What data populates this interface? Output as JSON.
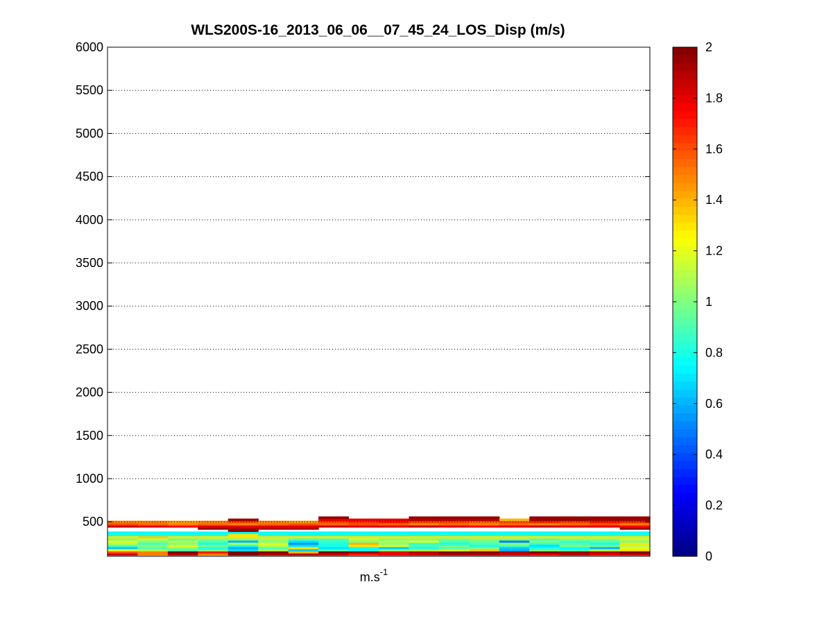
{
  "chart_data": {
    "type": "heatmap",
    "title": "WLS200S-16_2013_06_06__07_45_24_LOS_Disp (m/s)",
    "xlabel": "m.s",
    "xlabel_superscript": "-1",
    "ylabel": "",
    "ylim": [
      100,
      6000
    ],
    "yticks": [
      "500",
      "1000",
      "1500",
      "2000",
      "2500",
      "3000",
      "3500",
      "4000",
      "4500",
      "5000",
      "5500",
      "6000"
    ],
    "ytick_values": [
      500,
      1000,
      1500,
      2000,
      2500,
      3000,
      3500,
      4000,
      4500,
      5000,
      5500,
      6000
    ],
    "grid": true,
    "colormap": "jet",
    "clim": [
      0,
      2
    ],
    "colorbar_ticks": [
      "0",
      "0.2",
      "0.4",
      "0.6",
      "0.8",
      "1",
      "1.2",
      "1.4",
      "1.6",
      "1.8",
      "2"
    ],
    "colorbar_tick_values": [
      0,
      0.2,
      0.4,
      0.6,
      0.8,
      1.0,
      1.2,
      1.4,
      1.6,
      1.8,
      2.0
    ],
    "altitudes": [
      125,
      150,
      175,
      200,
      225,
      250,
      275,
      300,
      325,
      350,
      375,
      400,
      425,
      450,
      475,
      500,
      525,
      550,
      575
    ],
    "columns": 18,
    "values": [
      [
        1.85,
        1.5,
        1.9,
        1.5,
        2.0,
        1.9,
        1.9,
        1.85,
        1.7,
        1.8,
        1.85,
        1.9,
        1.9,
        1.85,
        1.8,
        1.9,
        1.8,
        1.85
      ],
      [
        1.6,
        1.5,
        2.0,
        1.7,
        2.0,
        2.0,
        1.4,
        2.0,
        1.95,
        1.8,
        1.9,
        2.0,
        2.0,
        1.9,
        2.0,
        1.95,
        1.9,
        2.0
      ],
      [
        1.2,
        1.1,
        0.9,
        1.0,
        0.7,
        1.1,
        0.65,
        0.9,
        0.8,
        1.0,
        1.1,
        1.2,
        1.35,
        0.6,
        1.0,
        0.9,
        1.1,
        1.3
      ],
      [
        0.65,
        0.9,
        1.0,
        0.8,
        0.6,
        0.9,
        1.3,
        0.7,
        0.75,
        0.65,
        0.8,
        0.9,
        1.0,
        0.65,
        0.8,
        0.75,
        0.6,
        1.2
      ],
      [
        0.9,
        1.0,
        1.2,
        1.0,
        0.8,
        1.1,
        0.7,
        0.8,
        1.3,
        1.2,
        0.9,
        1.0,
        0.8,
        0.9,
        0.7,
        1.0,
        1.0,
        1.1
      ],
      [
        1.1,
        0.9,
        1.0,
        0.8,
        1.1,
        1.2,
        0.55,
        0.8,
        1.4,
        1.0,
        0.85,
        0.8,
        0.9,
        1.0,
        0.85,
        0.9,
        0.8,
        1.3
      ],
      [
        1.2,
        1.0,
        1.1,
        0.9,
        0.6,
        1.0,
        0.7,
        0.85,
        1.0,
        1.1,
        1.2,
        0.9,
        0.95,
        0.5,
        1.0,
        0.85,
        0.9,
        1.0
      ],
      [
        1.0,
        1.1,
        0.95,
        1.0,
        1.0,
        1.05,
        0.9,
        0.9,
        1.1,
        1.0,
        1.0,
        0.95,
        1.0,
        1.0,
        0.9,
        1.0,
        1.0,
        1.1
      ],
      [
        1.3,
        1.35,
        1.3,
        1.3,
        1.3,
        1.3,
        1.3,
        1.3,
        1.3,
        1.3,
        1.3,
        1.3,
        1.3,
        1.3,
        1.3,
        1.3,
        1.3,
        1.3
      ],
      [
        0.8,
        0.8,
        0.8,
        0.8,
        1.3,
        0.8,
        0.8,
        0.8,
        0.8,
        0.8,
        0.8,
        0.8,
        0.8,
        0.8,
        0.8,
        0.8,
        0.8,
        0.8
      ],
      [
        0.75,
        0.75,
        0.75,
        0.75,
        0.75,
        0.75,
        0.75,
        0.75,
        0.75,
        0.75,
        0.75,
        0.75,
        0.75,
        0.75,
        0.75,
        0.75,
        0.75,
        0.75
      ],
      [
        null,
        null,
        null,
        null,
        2.0,
        null,
        null,
        null,
        null,
        null,
        null,
        null,
        null,
        null,
        null,
        null,
        null,
        null
      ],
      [
        null,
        null,
        null,
        1.95,
        1.9,
        1.9,
        1.9,
        null,
        null,
        null,
        null,
        null,
        null,
        null,
        null,
        null,
        null,
        1.95
      ],
      [
        1.85,
        1.8,
        1.75,
        1.8,
        1.8,
        1.8,
        1.8,
        1.85,
        1.8,
        1.8,
        1.85,
        1.8,
        1.75,
        1.8,
        1.85,
        1.8,
        1.8,
        1.75
      ],
      [
        1.6,
        1.55,
        1.5,
        1.55,
        1.5,
        1.55,
        1.6,
        1.55,
        1.6,
        1.55,
        1.5,
        1.55,
        1.5,
        1.55,
        1.5,
        1.55,
        1.6,
        1.5
      ],
      [
        1.5,
        1.5,
        1.45,
        1.5,
        1.6,
        1.5,
        1.45,
        1.6,
        1.65,
        1.7,
        1.6,
        1.6,
        1.55,
        1.6,
        1.65,
        1.6,
        1.7,
        1.65
      ],
      [
        null,
        null,
        null,
        null,
        1.95,
        null,
        null,
        1.8,
        1.8,
        1.8,
        1.9,
        1.9,
        1.9,
        1.4,
        1.95,
        1.95,
        1.95,
        1.95
      ],
      [
        null,
        null,
        null,
        null,
        null,
        null,
        null,
        1.95,
        null,
        null,
        1.95,
        1.95,
        1.95,
        null,
        1.95,
        1.95,
        1.95,
        1.95
      ],
      [
        null,
        null,
        null,
        null,
        null,
        null,
        null,
        null,
        null,
        null,
        null,
        null,
        null,
        null,
        null,
        null,
        null,
        null
      ]
    ]
  }
}
